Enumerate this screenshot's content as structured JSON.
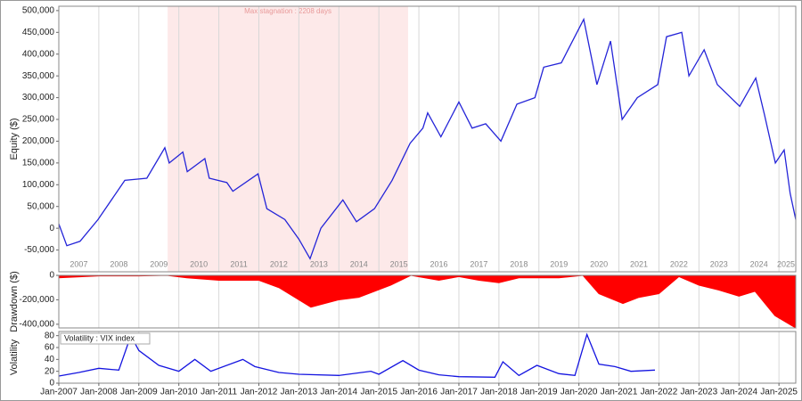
{
  "chart_data": [
    {
      "type": "line",
      "ylabel": "Equity ($)",
      "xlim": [
        2007,
        2025.42
      ],
      "ylim": [
        -100000,
        510000
      ],
      "yticks": [
        {
          "value": -50000,
          "label": "-50,000"
        },
        0,
        {
          "value": 50000,
          "label": "50,000"
        },
        {
          "value": 100000,
          "label": "100,000"
        },
        {
          "value": 150000,
          "label": "150,000"
        },
        {
          "value": 200000,
          "label": "200,000"
        },
        {
          "value": 250000,
          "label": "250,000"
        },
        {
          "value": 300000,
          "label": "300,000"
        },
        {
          "value": 350000,
          "label": "350,000"
        },
        {
          "value": 400000,
          "label": "400,000"
        },
        {
          "value": 450000,
          "label": "450,000"
        },
        {
          "value": 500000,
          "label": "500,000"
        }
      ],
      "period_labels": [
        "2007",
        "2008",
        "2009",
        "2010",
        "2011",
        "2012",
        "2013",
        "2014",
        "2015",
        "2016",
        "2017",
        "2018",
        "2019",
        "2020",
        "2021",
        "2022",
        "2023",
        "2024",
        "2025"
      ],
      "stagnation": {
        "x": [
          2009.72,
          2015.73
        ],
        "label": "Max stagnation : 2208 days",
        "color": "#fde9e9"
      },
      "series": [
        {
          "color": "#2424d8",
          "x": [
            2007.0,
            2007.2,
            2007.53,
            2007.98,
            2008.65,
            2009.2,
            2009.65,
            2009.76,
            2010.1,
            2010.21,
            2010.65,
            2010.76,
            2011.2,
            2011.35,
            2011.98,
            2012.2,
            2012.65,
            2013.0,
            2013.28,
            2013.55,
            2014.1,
            2014.44,
            2014.89,
            2015.33,
            2015.78,
            2016.1,
            2016.22,
            2016.55,
            2017.0,
            2017.33,
            2017.67,
            2018.05,
            2018.45,
            2018.9,
            2019.12,
            2019.56,
            2020.12,
            2020.45,
            2020.79,
            2021.08,
            2021.46,
            2021.97,
            2022.19,
            2022.57,
            2022.75,
            2023.13,
            2023.46,
            2024.02,
            2024.42,
            2024.64,
            2024.91,
            2025.13,
            2025.28,
            2025.42
          ],
          "values": [
            10000,
            -40000,
            -30000,
            20000,
            110000,
            115000,
            185000,
            150000,
            175000,
            130000,
            160000,
            115000,
            105000,
            85000,
            125000,
            45000,
            20000,
            -25000,
            -70000,
            0,
            65000,
            15000,
            45000,
            110000,
            195000,
            230000,
            265000,
            210000,
            290000,
            230000,
            240000,
            200000,
            285000,
            300000,
            370000,
            380000,
            480000,
            330000,
            430000,
            250000,
            300000,
            330000,
            440000,
            450000,
            350000,
            410000,
            330000,
            280000,
            345000,
            260000,
            150000,
            180000,
            80000,
            20000
          ]
        }
      ]
    },
    {
      "type": "area",
      "ylabel": "Drawdown ($)",
      "xlim": [
        2007,
        2025.42
      ],
      "ylim": [
        -430000,
        0
      ],
      "yticks": [
        {
          "value": -400000,
          "label": "-400,000"
        },
        {
          "value": -200000,
          "label": "-200,000"
        },
        0
      ],
      "series": [
        {
          "color": "#ff0000",
          "x": [
            2007.0,
            2008.0,
            2009.0,
            2009.7,
            2010.2,
            2011.0,
            2012.0,
            2012.5,
            2013.3,
            2014.0,
            2014.5,
            2015.3,
            2015.8,
            2016.5,
            2017.0,
            2017.5,
            2018.0,
            2018.5,
            2019.0,
            2019.5,
            2020.1,
            2020.5,
            2021.1,
            2021.5,
            2022.0,
            2022.5,
            2023.0,
            2023.5,
            2024.0,
            2024.4,
            2024.9,
            2025.42
          ],
          "values": [
            -20000,
            -5000,
            -5000,
            0,
            -20000,
            -40000,
            -40000,
            -100000,
            -260000,
            -200000,
            -180000,
            -80000,
            0,
            -40000,
            -10000,
            -40000,
            -60000,
            -20000,
            -20000,
            -20000,
            0,
            -150000,
            -230000,
            -180000,
            -150000,
            -10000,
            -80000,
            -120000,
            -170000,
            -130000,
            -330000,
            -430000
          ]
        }
      ]
    },
    {
      "type": "line",
      "ylabel": "Volatility",
      "xlim": [
        2007,
        2025.42
      ],
      "ylim": [
        0,
        87
      ],
      "yticks": [
        0,
        20,
        40,
        60,
        80
      ],
      "xticks": [
        {
          "value": 2007,
          "label": "Jan-2007"
        },
        {
          "value": 2008,
          "label": "Jan-2008"
        },
        {
          "value": 2009,
          "label": "Jan-2009"
        },
        {
          "value": 2010,
          "label": "Jan-2010"
        },
        {
          "value": 2011,
          "label": "Jan-2011"
        },
        {
          "value": 2012,
          "label": "Jan-2012"
        },
        {
          "value": 2013,
          "label": "Jan-2013"
        },
        {
          "value": 2014,
          "label": "Jan-2014"
        },
        {
          "value": 2015,
          "label": "Jan-2015"
        },
        {
          "value": 2016,
          "label": "Jan-2016"
        },
        {
          "value": 2017,
          "label": "Jan-2017"
        },
        {
          "value": 2018,
          "label": "Jan-2018"
        },
        {
          "value": 2019,
          "label": "Jan-2019"
        },
        {
          "value": 2020,
          "label": "Jan-2020"
        },
        {
          "value": 2021,
          "label": "Jan-2021"
        },
        {
          "value": 2022,
          "label": "Jan-2022"
        },
        {
          "value": 2023,
          "label": "Jan-2023"
        },
        {
          "value": 2024,
          "label": "Jan-2024"
        },
        {
          "value": 2025,
          "label": "Jan-2025"
        }
      ],
      "series": [
        {
          "name": "Volatility : VIX index",
          "color": "#1414e0",
          "x": [
            2007.0,
            2007.5,
            2008.0,
            2008.5,
            2008.8,
            2009.0,
            2009.5,
            2010.0,
            2010.4,
            2010.8,
            2011.6,
            2011.9,
            2012.5,
            2013.0,
            2014.0,
            2014.8,
            2015.0,
            2015.6,
            2016.0,
            2016.5,
            2017.0,
            2017.9,
            2018.1,
            2018.5,
            2018.95,
            2019.5,
            2019.9,
            2020.2,
            2020.5,
            2020.9,
            2021.3,
            2021.9
          ],
          "values": [
            12,
            18,
            25,
            22,
            80,
            55,
            30,
            20,
            40,
            20,
            40,
            28,
            18,
            15,
            13,
            20,
            15,
            38,
            22,
            14,
            11,
            10,
            36,
            13,
            30,
            16,
            13,
            82,
            32,
            28,
            20,
            22
          ]
        }
      ]
    }
  ]
}
